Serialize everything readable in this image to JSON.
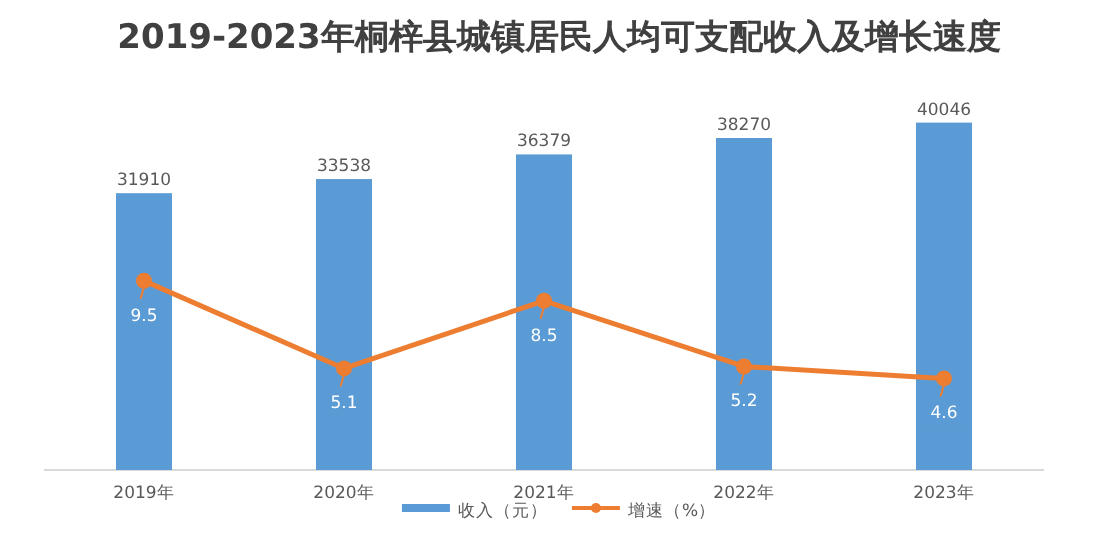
{
  "chart_data": {
    "type": "bar",
    "title": "2019-2023年桐梓县城镇居民人均可支配收入及增长速度",
    "categories": [
      "2019年",
      "2020年",
      "2021年",
      "2022年",
      "2023年"
    ],
    "series": [
      {
        "name": "收入（元）",
        "color": "#5b9bd5",
        "values": [
          31910,
          33538,
          36379,
          38270,
          40046
        ]
      },
      {
        "name": "增速（%）",
        "type": "line",
        "axis": "y2",
        "color": "#ed7d31",
        "values": [
          9.5,
          5.1,
          8.5,
          5.2,
          4.6
        ]
      }
    ],
    "marker": "circle",
    "data_labels": true,
    "legend": "bottom"
  }
}
